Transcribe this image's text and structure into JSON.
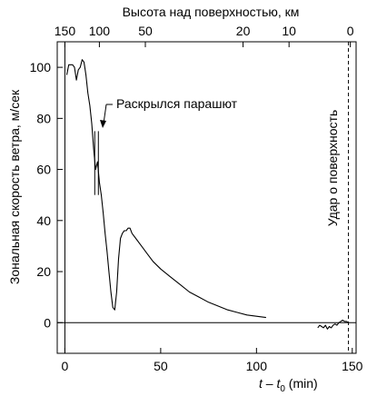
{
  "chart_data": {
    "type": "line",
    "xlabel_prefix": "t",
    "xlabel_dash": " – ",
    "xlabel_t": "t",
    "xlabel_sub": "0",
    "xlabel_unit": " (min)",
    "ylabel": "Зональная скорость ветра, м/сек",
    "top_axis_label": "Высота над поверхностью, км",
    "xlim": [
      -4,
      152
    ],
    "ylim": [
      -12,
      110
    ],
    "x_ticks": [
      0,
      50,
      100,
      150
    ],
    "y_ticks": [
      0,
      20,
      40,
      60,
      80,
      100
    ],
    "top_ticks": [
      {
        "label": "150",
        "x": 0
      },
      {
        "label": "100",
        "x": 18
      },
      {
        "label": "50",
        "x": 42
      },
      {
        "label": "20",
        "x": 93
      },
      {
        "label": "10",
        "x": 117
      },
      {
        "label": "0",
        "x": 149
      }
    ],
    "annotations": {
      "parachute": "Раскрылся парашют",
      "impact": "Удар о поверхность"
    },
    "impact_x": 148,
    "parachute_x": 17,
    "series": [
      {
        "values": [
          [
            1,
            97
          ],
          [
            2,
            101
          ],
          [
            3,
            101
          ],
          [
            4,
            101
          ],
          [
            5,
            100
          ],
          [
            6,
            95
          ],
          [
            7,
            99
          ],
          [
            8,
            100
          ],
          [
            9,
            103
          ],
          [
            10,
            102
          ],
          [
            11,
            97
          ],
          [
            12,
            90
          ],
          [
            13,
            85
          ],
          [
            14,
            78
          ],
          [
            15,
            68
          ],
          [
            16,
            60
          ],
          [
            17,
            63
          ],
          [
            18,
            55
          ],
          [
            19,
            50
          ],
          [
            20,
            43
          ],
          [
            21,
            35
          ],
          [
            22,
            28
          ],
          [
            23,
            20
          ],
          [
            24,
            12
          ],
          [
            25,
            6
          ],
          [
            26,
            5
          ],
          [
            27,
            12
          ],
          [
            28,
            25
          ],
          [
            29,
            33
          ],
          [
            30,
            35
          ],
          [
            31,
            36
          ],
          [
            32,
            36
          ],
          [
            33,
            37
          ],
          [
            34,
            37
          ],
          [
            35,
            35
          ],
          [
            37,
            33
          ],
          [
            40,
            30
          ],
          [
            43,
            27
          ],
          [
            46,
            24
          ],
          [
            50,
            21
          ],
          [
            55,
            18
          ],
          [
            60,
            15
          ],
          [
            65,
            12
          ],
          [
            70,
            10
          ],
          [
            75,
            8
          ],
          [
            80,
            6.5
          ],
          [
            85,
            5
          ],
          [
            90,
            4
          ],
          [
            95,
            3
          ],
          [
            100,
            2.5
          ],
          [
            105,
            2
          ]
        ]
      },
      {
        "values": [
          [
            132,
            -2
          ],
          [
            133,
            -1
          ],
          [
            134,
            -1.5
          ],
          [
            135,
            -2
          ],
          [
            136,
            -1
          ],
          [
            137,
            -2.5
          ],
          [
            138,
            -1.5
          ],
          [
            139,
            -2
          ],
          [
            140,
            -1
          ],
          [
            141,
            -0.5
          ],
          [
            142,
            -1
          ],
          [
            143,
            0
          ],
          [
            144,
            0.5
          ],
          [
            145,
            1
          ],
          [
            146,
            0.5
          ],
          [
            147,
            0.5
          ],
          [
            148,
            0
          ]
        ]
      }
    ]
  }
}
